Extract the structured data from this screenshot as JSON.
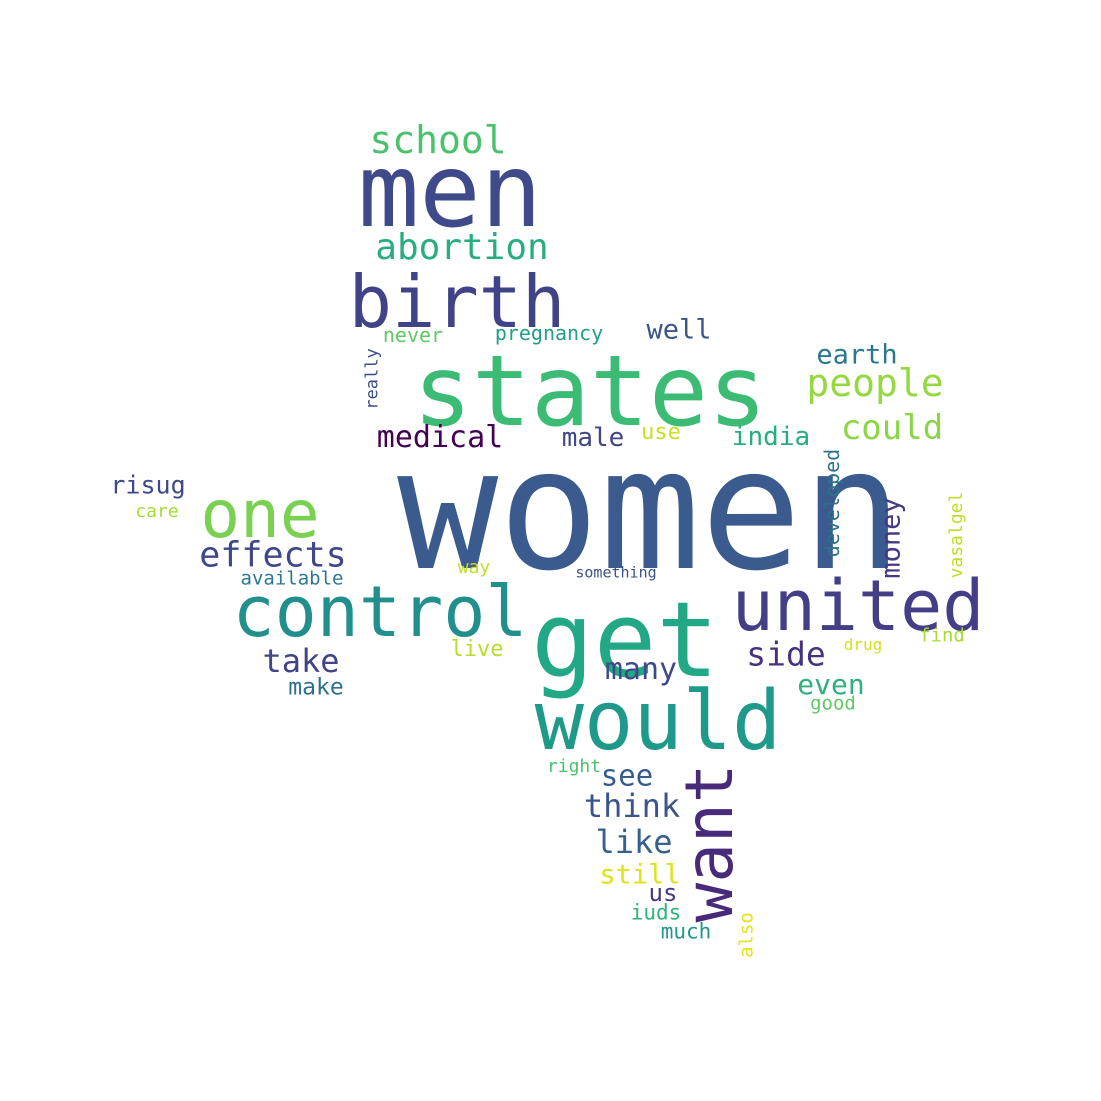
{
  "words": [
    {
      "text": "women",
      "color": "#3b5a8e"
    },
    {
      "text": "states",
      "color": "#3cbb75"
    },
    {
      "text": "men",
      "color": "#3e4a89"
    },
    {
      "text": "get",
      "color": "#22a884"
    },
    {
      "text": "control",
      "color": "#21908d"
    },
    {
      "text": "would",
      "color": "#1f9a8a"
    },
    {
      "text": "united",
      "color": "#433e85"
    },
    {
      "text": "birth",
      "color": "#404387"
    },
    {
      "text": "one",
      "color": "#7ad151"
    },
    {
      "text": "want",
      "color": "#472a7a"
    },
    {
      "text": "school",
      "color": "#4ac16d"
    },
    {
      "text": "abortion",
      "color": "#27ad81"
    },
    {
      "text": "people",
      "color": "#95d840"
    },
    {
      "text": "effects",
      "color": "#3f4788"
    },
    {
      "text": "could",
      "color": "#8bd646"
    },
    {
      "text": "medical",
      "color": "#440154"
    },
    {
      "text": "take",
      "color": "#414487"
    },
    {
      "text": "side",
      "color": "#46327e"
    },
    {
      "text": "think",
      "color": "#3a548c"
    },
    {
      "text": "like",
      "color": "#355f8d"
    },
    {
      "text": "see",
      "color": "#365c8d"
    },
    {
      "text": "many",
      "color": "#3e4989"
    },
    {
      "text": "even",
      "color": "#2db27d"
    },
    {
      "text": "earth",
      "color": "#2a788e"
    },
    {
      "text": "india",
      "color": "#26ad81"
    },
    {
      "text": "well",
      "color": "#39558c"
    },
    {
      "text": "male",
      "color": "#404688"
    },
    {
      "text": "money",
      "color": "#443983"
    },
    {
      "text": "developed",
      "color": "#2c728e"
    },
    {
      "text": "risug",
      "color": "#3f4889"
    },
    {
      "text": "make",
      "color": "#2e6f8e"
    },
    {
      "text": "still",
      "color": "#dde318"
    },
    {
      "text": "us",
      "color": "#453781"
    },
    {
      "text": "iuds",
      "color": "#2eb37c"
    },
    {
      "text": "much",
      "color": "#1f988b"
    },
    {
      "text": "also",
      "color": "#e5e419"
    },
    {
      "text": "use",
      "color": "#c8e020"
    },
    {
      "text": "live",
      "color": "#b5de2b"
    },
    {
      "text": "never",
      "color": "#5ec962"
    },
    {
      "text": "pregnancy",
      "color": "#1f9e89"
    },
    {
      "text": "really",
      "color": "#3d4e8a"
    },
    {
      "text": "vasalgel",
      "color": "#bddf26"
    },
    {
      "text": "find",
      "color": "#a8db34"
    },
    {
      "text": "drug",
      "color": "#d2e21b"
    },
    {
      "text": "good",
      "color": "#5ec962"
    },
    {
      "text": "right",
      "color": "#4ac16d"
    },
    {
      "text": "care",
      "color": "#a5db36"
    },
    {
      "text": "available",
      "color": "#2a788e"
    },
    {
      "text": "way",
      "color": "#c2df23"
    },
    {
      "text": "something",
      "color": "#3b528b"
    }
  ]
}
